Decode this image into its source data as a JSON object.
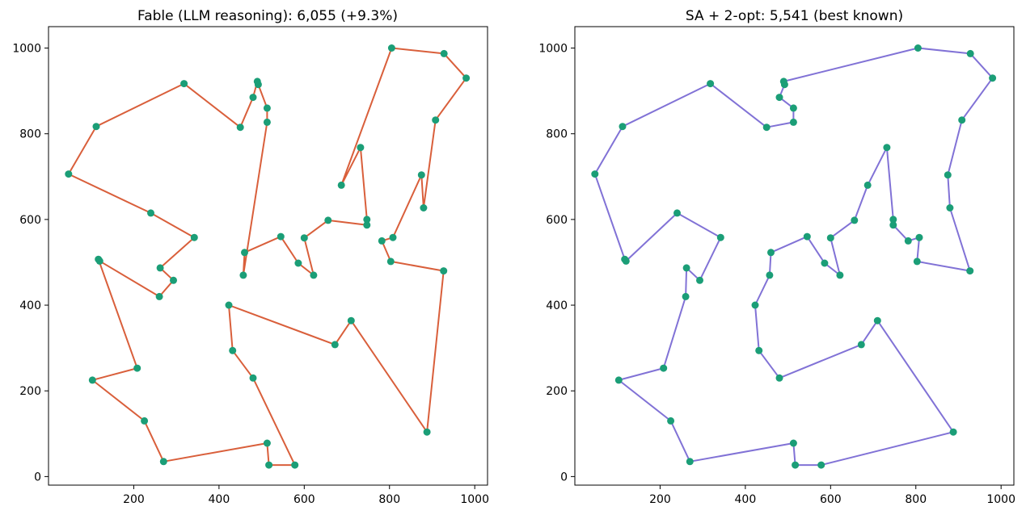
{
  "colors": {
    "left_route": "#d95f3b",
    "right_route": "#8172d6",
    "city": "#1b9e77",
    "axes": "#000000",
    "background": "#ffffff"
  },
  "chart_data": [
    {
      "type": "line",
      "title": "Fable (LLM reasoning): 6,055 (+9.3%)",
      "xlabel": "",
      "ylabel": "",
      "xlim": [
        0,
        1030
      ],
      "ylim": [
        -20,
        1050
      ],
      "xticks": [
        200,
        400,
        600,
        800,
        1000
      ],
      "yticks": [
        0,
        200,
        400,
        600,
        800,
        1000
      ],
      "grid": false,
      "series": [
        {
          "points": [
            [
              112,
              817
            ],
            [
              318,
              917
            ],
            [
              450,
              815
            ],
            [
              480,
              885
            ],
            [
              490,
              922
            ],
            [
              492,
              915
            ],
            [
              513,
              860
            ],
            [
              513,
              827
            ],
            [
              457,
              470
            ],
            [
              460,
              523
            ],
            [
              545,
              560
            ],
            [
              586,
              498
            ],
            [
              622,
              470
            ],
            [
              600,
              557
            ],
            [
              656,
              598
            ],
            [
              747,
              587
            ],
            [
              747,
              600
            ],
            [
              732,
              768
            ],
            [
              687,
              680
            ],
            [
              805,
              1000
            ],
            [
              928,
              987
            ],
            [
              980,
              930
            ],
            [
              908,
              832
            ],
            [
              880,
              627
            ],
            [
              875,
              704
            ],
            [
              808,
              558
            ],
            [
              782,
              550
            ],
            [
              803,
              502
            ],
            [
              927,
              480
            ],
            [
              888,
              104
            ],
            [
              710,
              364
            ],
            [
              672,
              308
            ],
            [
              423,
              400
            ],
            [
              432,
              294
            ],
            [
              480,
              230
            ],
            [
              578,
              27
            ],
            [
              517,
              27
            ],
            [
              513,
              78
            ],
            [
              270,
              35
            ],
            [
              225,
              130
            ],
            [
              103,
              225
            ],
            [
              208,
              253
            ],
            [
              117,
              507
            ],
            [
              120,
              503
            ],
            [
              260,
              420
            ],
            [
              293,
              458
            ],
            [
              262,
              487
            ],
            [
              342,
              558
            ],
            [
              240,
              615
            ],
            [
              47,
              706
            ],
            [
              112,
              817
            ]
          ]
        }
      ]
    },
    {
      "type": "line",
      "title": "SA + 2-opt: 5,541 (best known)",
      "xlabel": "",
      "ylabel": "",
      "xlim": [
        0,
        1030
      ],
      "ylim": [
        -20,
        1050
      ],
      "xticks": [
        200,
        400,
        600,
        800,
        1000
      ],
      "yticks": [
        0,
        200,
        400,
        600,
        800,
        1000
      ],
      "grid": false,
      "series": [
        {
          "points": [
            [
              112,
              817
            ],
            [
              318,
              917
            ],
            [
              450,
              815
            ],
            [
              513,
              827
            ],
            [
              513,
              860
            ],
            [
              480,
              885
            ],
            [
              492,
              915
            ],
            [
              490,
              922
            ],
            [
              805,
              1000
            ],
            [
              928,
              987
            ],
            [
              980,
              930
            ],
            [
              908,
              832
            ],
            [
              875,
              704
            ],
            [
              880,
              627
            ],
            [
              927,
              480
            ],
            [
              803,
              502
            ],
            [
              808,
              558
            ],
            [
              782,
              550
            ],
            [
              747,
              587
            ],
            [
              747,
              600
            ],
            [
              732,
              768
            ],
            [
              687,
              680
            ],
            [
              656,
              598
            ],
            [
              600,
              557
            ],
            [
              622,
              470
            ],
            [
              586,
              498
            ],
            [
              545,
              560
            ],
            [
              460,
              523
            ],
            [
              457,
              470
            ],
            [
              423,
              400
            ],
            [
              432,
              294
            ],
            [
              480,
              230
            ],
            [
              672,
              308
            ],
            [
              710,
              364
            ],
            [
              888,
              104
            ],
            [
              578,
              27
            ],
            [
              517,
              27
            ],
            [
              513,
              78
            ],
            [
              270,
              35
            ],
            [
              225,
              130
            ],
            [
              103,
              225
            ],
            [
              208,
              253
            ],
            [
              260,
              420
            ],
            [
              262,
              487
            ],
            [
              293,
              458
            ],
            [
              342,
              558
            ],
            [
              240,
              615
            ],
            [
              120,
              503
            ],
            [
              117,
              507
            ],
            [
              47,
              706
            ],
            [
              112,
              817
            ]
          ]
        }
      ]
    }
  ]
}
